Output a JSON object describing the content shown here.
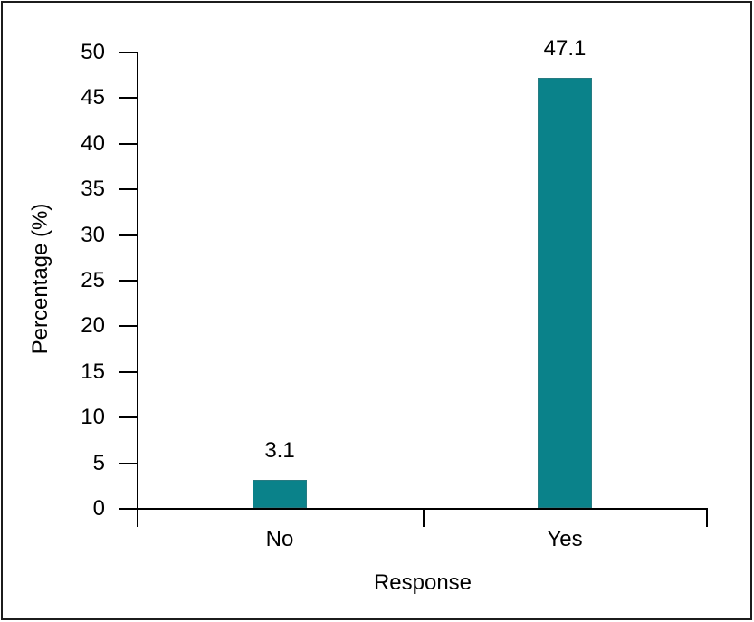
{
  "chart_data": {
    "type": "bar",
    "title": "",
    "categories": [
      "No",
      "Yes"
    ],
    "values": [
      3.1,
      47.1
    ],
    "value_labels": [
      "3.1",
      "47.1"
    ],
    "xlabel": "Response",
    "ylabel": "Percentage (%)",
    "ylim": [
      0,
      50
    ],
    "ytick_step": 5,
    "ytick_labels": [
      "0",
      "5",
      "10",
      "15",
      "20",
      "25",
      "30",
      "35",
      "40",
      "45",
      "50"
    ],
    "bar_color": "#0a828a",
    "axis_color": "#000000",
    "background_color": "#ffffff",
    "grid": false,
    "legend": "none"
  }
}
